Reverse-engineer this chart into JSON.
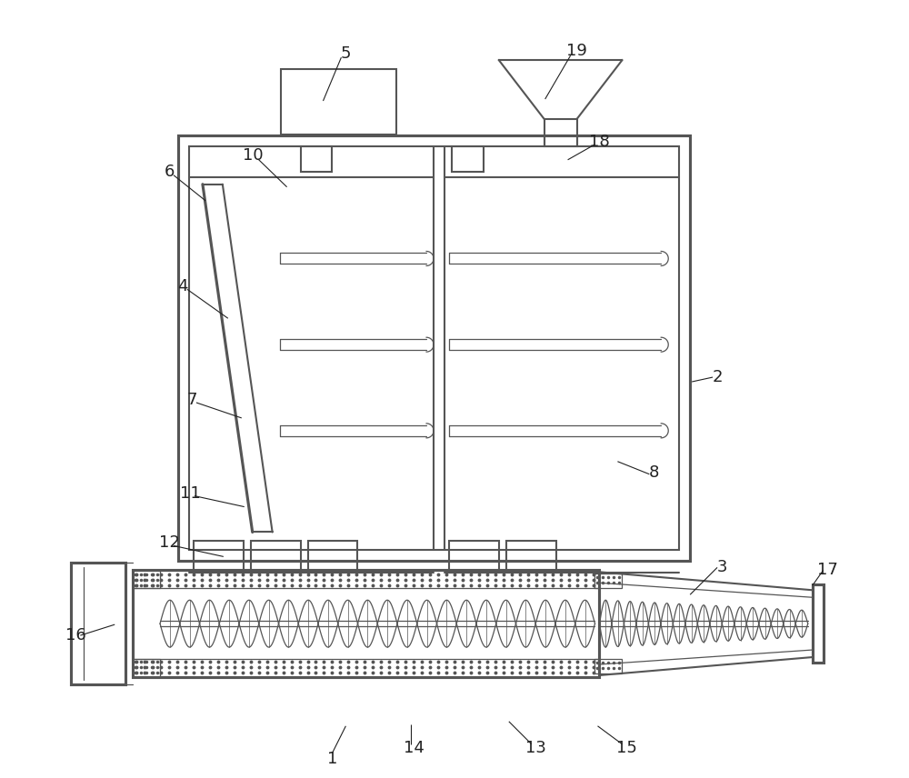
{
  "bg_color": "#ffffff",
  "line_color": "#555555",
  "line_width": 1.5,
  "thin_line": 0.9,
  "label_fontsize": 13,
  "label_color": "#222222"
}
